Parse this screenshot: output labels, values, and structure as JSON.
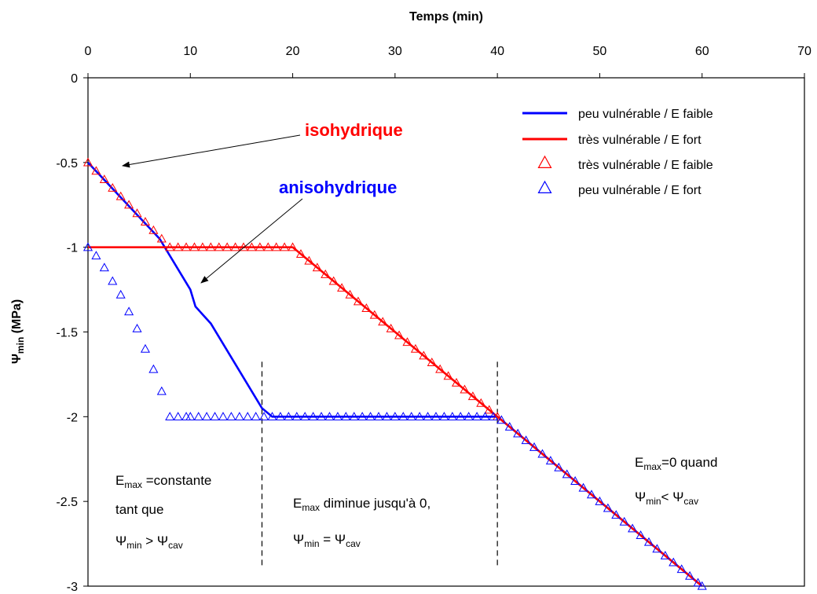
{
  "chart_data": {
    "type": "line",
    "xlabel": "Temps (min)",
    "ylabel": "Ψ",
    "ylabel_sub": "min",
    "ylabel_unit": " (MPa)",
    "xlim": [
      0,
      70
    ],
    "ylim": [
      -3,
      0
    ],
    "x_ticks": [
      0,
      10,
      20,
      30,
      40,
      50,
      60,
      70
    ],
    "y_ticks": [
      0,
      -0.5,
      -1,
      -1.5,
      -2,
      -2.5,
      -3
    ],
    "x_tick_labels": [
      "0",
      "10",
      "20",
      "30",
      "40",
      "50",
      "60",
      "70"
    ],
    "y_tick_labels": [
      "0",
      "-0.5",
      "-1",
      "-1.5",
      "-2",
      "-2.5",
      "-3"
    ],
    "grid": false,
    "legend_position": "top-right",
    "series": [
      {
        "name": "peu vulnérable / E faible",
        "style": "line",
        "color": "#0000ff",
        "x": [
          0,
          7,
          10,
          10.5,
          12,
          17,
          18,
          40,
          60
        ],
        "y": [
          -0.5,
          -0.95,
          -1.25,
          -1.35,
          -1.45,
          -1.95,
          -2.0,
          -2.0,
          -3.0
        ]
      },
      {
        "name": "très vulnérable / E fort",
        "style": "line",
        "color": "#ff0000",
        "x": [
          0,
          20,
          40,
          60
        ],
        "y": [
          -1.0,
          -1.0,
          -2.0,
          -3.0
        ]
      },
      {
        "name": "très vulnérable / E faible",
        "style": "triangle",
        "color": "#ff0000",
        "x": [
          0,
          0.8,
          1.6,
          2.4,
          3.2,
          4.0,
          4.8,
          5.6,
          6.4,
          7.2,
          8,
          8.8,
          9.6,
          10.4,
          11.2,
          12,
          12.8,
          13.6,
          14.4,
          15.2,
          16,
          16.8,
          17.6,
          18.4,
          19.2,
          20,
          20.8,
          21.6,
          22.4,
          23.2,
          24,
          24.8,
          25.6,
          26.4,
          27.2,
          28,
          28.8,
          29.6,
          30.4,
          31.2,
          32,
          32.8,
          33.6,
          34.4,
          35.2,
          36,
          36.8,
          37.6,
          38.4,
          39.2,
          40
        ],
        "y": [
          -0.5,
          -0.55,
          -0.6,
          -0.65,
          -0.7,
          -0.75,
          -0.8,
          -0.85,
          -0.9,
          -0.95,
          -1.0,
          -1.0,
          -1.0,
          -1.0,
          -1.0,
          -1.0,
          -1.0,
          -1.0,
          -1.0,
          -1.0,
          -1.0,
          -1.0,
          -1.0,
          -1.0,
          -1.0,
          -1.0,
          -1.04,
          -1.08,
          -1.12,
          -1.16,
          -1.2,
          -1.24,
          -1.28,
          -1.32,
          -1.36,
          -1.4,
          -1.44,
          -1.48,
          -1.52,
          -1.56,
          -1.6,
          -1.64,
          -1.68,
          -1.72,
          -1.76,
          -1.8,
          -1.84,
          -1.88,
          -1.92,
          -1.96,
          -2.0
        ]
      },
      {
        "name": "peu vulnérable / E fort",
        "style": "triangle",
        "color": "#0000ff",
        "x": [
          0,
          0.8,
          1.6,
          2.4,
          3.2,
          4.0,
          4.8,
          5.6,
          6.4,
          7.2,
          8,
          8.8,
          9.6,
          10,
          10.8,
          11.6,
          12.4,
          13.2,
          14,
          14.8,
          15.6,
          16.4,
          17.2,
          18,
          18.8,
          19.6,
          20.4,
          21.2,
          22,
          22.8,
          23.6,
          24.4,
          25.2,
          26,
          26.8,
          27.6,
          28.4,
          29.2,
          30,
          30.8,
          31.6,
          32.4,
          33.2,
          34,
          34.8,
          35.6,
          36.4,
          37.2,
          38,
          38.8,
          39.6,
          40.4,
          41.2,
          42,
          42.8,
          43.6,
          44.4,
          45.2,
          46,
          46.8,
          47.6,
          48.4,
          49.2,
          50,
          50.8,
          51.6,
          52.4,
          53.2,
          54,
          54.8,
          55.6,
          56.4,
          57.2,
          58,
          58.8,
          59.6,
          60
        ],
        "y": [
          -1.0,
          -1.05,
          -1.12,
          -1.2,
          -1.28,
          -1.38,
          -1.48,
          -1.6,
          -1.72,
          -1.85,
          -2.0,
          -2.0,
          -2.0,
          -2.0,
          -2.0,
          -2.0,
          -2.0,
          -2.0,
          -2.0,
          -2.0,
          -2.0,
          -2.0,
          -2.0,
          -2.0,
          -2.0,
          -2.0,
          -2.0,
          -2.0,
          -2.0,
          -2.0,
          -2.0,
          -2.0,
          -2.0,
          -2.0,
          -2.0,
          -2.0,
          -2.0,
          -2.0,
          -2.0,
          -2.0,
          -2.0,
          -2.0,
          -2.0,
          -2.0,
          -2.0,
          -2.0,
          -2.0,
          -2.0,
          -2.0,
          -2.0,
          -2.0,
          -2.02,
          -2.06,
          -2.1,
          -2.14,
          -2.18,
          -2.22,
          -2.26,
          -2.3,
          -2.34,
          -2.38,
          -2.42,
          -2.46,
          -2.5,
          -2.54,
          -2.58,
          -2.62,
          -2.66,
          -2.7,
          -2.74,
          -2.78,
          -2.82,
          -2.86,
          -2.9,
          -2.94,
          -2.98,
          -3.0
        ]
      }
    ],
    "vertical_lines": [
      17,
      40
    ],
    "annotations": {
      "isohydrique": "isohydrique",
      "anisohydrique": "anisohydrique",
      "iso_color": "#ff0000",
      "aniso_color": "#0000ff",
      "note1": {
        "line1_pre": "E",
        "line1_sub": "max",
        "line1_post": " =constante",
        "line2": "tant que",
        "line3_a": "Ψ",
        "line3_a_sub": "min",
        "line3_op": " > Ψ",
        "line3_b_sub": "cav"
      },
      "note2": {
        "line1_pre": "E",
        "line1_sub": "max",
        "line1_post": " diminue jusqu'à 0,",
        "line2_a": "Ψ",
        "line2_a_sub": "min",
        "line2_op": " = Ψ",
        "line2_b_sub": "cav"
      },
      "note3": {
        "line1_pre": "E",
        "line1_sub": "max",
        "line1_post": "=0 quand",
        "line2_a": "Ψ",
        "line2_a_sub": "min",
        "line2_op": "< Ψ",
        "line2_b_sub": "cav"
      }
    }
  }
}
